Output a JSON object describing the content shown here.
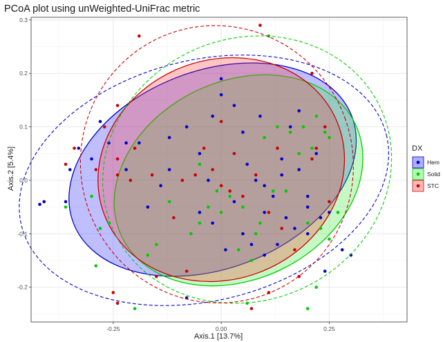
{
  "chart_data": {
    "type": "scatter",
    "title": "PCoA plot using unWeighted-UniFrac metric",
    "xlabel": "Axis.1   [13.7%]",
    "ylabel": "Axis.2   [5.4%]",
    "xlim": [
      -0.44,
      0.43
    ],
    "ylim": [
      -0.265,
      0.305
    ],
    "x_ticks": [
      -0.25,
      0.0,
      0.25
    ],
    "x_tick_labels": [
      "-0.25",
      "0.00",
      "0.25"
    ],
    "y_ticks": [
      -0.2,
      -0.1,
      0.0,
      0.1,
      0.2,
      0.3
    ],
    "y_tick_labels": [
      "-0.2",
      "-0.1",
      "0.0",
      "0.1",
      "0.2",
      "0.3"
    ],
    "grid": true,
    "legend": {
      "title": "DX",
      "placement": "right",
      "entries": [
        "Hem",
        "Solid",
        "STC"
      ]
    },
    "series": [
      {
        "name": "Hem",
        "color": "#0000cc",
        "fill": "#1a1aff",
        "points": [
          [
            -0.42,
            -0.045
          ],
          [
            -0.41,
            -0.04
          ],
          [
            -0.36,
            -0.04
          ],
          [
            -0.35,
            0.02
          ],
          [
            -0.33,
            0.06
          ],
          [
            -0.3,
            0.04
          ],
          [
            -0.28,
            0.11
          ],
          [
            -0.26,
            0.07
          ],
          [
            -0.22,
            0.02
          ],
          [
            -0.22,
            0.07
          ],
          [
            -0.19,
            0.07
          ],
          [
            -0.14,
            -0.01
          ],
          [
            -0.12,
            0.08
          ],
          [
            -0.08,
            0.1
          ],
          [
            -0.05,
            0.05
          ],
          [
            -0.02,
            0.12
          ],
          [
            0.0,
            0.16
          ],
          [
            0.03,
            0.14
          ],
          [
            0.05,
            0.09
          ],
          [
            0.06,
            0.03
          ],
          [
            0.08,
            0.0
          ],
          [
            0.1,
            -0.01
          ],
          [
            0.12,
            -0.03
          ],
          [
            0.14,
            0.04
          ],
          [
            0.16,
            0.1
          ],
          [
            0.18,
            0.02
          ],
          [
            0.2,
            -0.03
          ],
          [
            0.22,
            0.05
          ],
          [
            0.15,
            -0.07
          ],
          [
            0.13,
            -0.12
          ],
          [
            0.1,
            -0.06
          ],
          [
            0.05,
            -0.1
          ],
          [
            -0.02,
            -0.08
          ],
          [
            -0.05,
            -0.06
          ],
          [
            0.03,
            -0.04
          ],
          [
            0.07,
            -0.12
          ],
          [
            0.1,
            -0.14
          ],
          [
            0.2,
            -0.1
          ],
          [
            0.23,
            -0.07
          ],
          [
            0.25,
            -0.06
          ],
          [
            0.28,
            -0.13
          ],
          [
            0.3,
            -0.14
          ],
          [
            0.24,
            -0.17
          ],
          [
            0.2,
            -0.05
          ],
          [
            0.17,
            -0.09
          ],
          [
            0.0,
            0.19
          ],
          [
            -0.03,
            0.0
          ],
          [
            -0.17,
            -0.05
          ],
          [
            0.01,
            -0.13
          ],
          [
            -0.08,
            -0.22
          ],
          [
            0.14,
            0.01
          ],
          [
            0.09,
            0.12
          ],
          [
            0.18,
            0.13
          ],
          [
            -0.12,
            0.02
          ]
        ]
      },
      {
        "name": "Solid",
        "color": "#00cc00",
        "fill": "#33e633",
        "points": [
          [
            0.11,
            0.27
          ],
          [
            0.22,
            0.12
          ],
          [
            0.24,
            0.09
          ],
          [
            0.19,
            0.1
          ],
          [
            0.25,
            0.08
          ],
          [
            0.21,
            0.06
          ],
          [
            0.18,
            0.05
          ],
          [
            0.15,
            -0.02
          ],
          [
            0.2,
            -0.08
          ],
          [
            0.23,
            -0.09
          ],
          [
            0.25,
            -0.11
          ],
          [
            0.27,
            -0.06
          ],
          [
            0.09,
            -0.08
          ],
          [
            0.05,
            -0.05
          ],
          [
            0.02,
            -0.03
          ],
          [
            -0.01,
            -0.02
          ],
          [
            -0.03,
            -0.05
          ],
          [
            -0.05,
            -0.08
          ],
          [
            -0.07,
            -0.1
          ],
          [
            0.0,
            -0.06
          ],
          [
            0.04,
            -0.13
          ],
          [
            0.07,
            -0.15
          ],
          [
            0.06,
            -0.23
          ],
          [
            0.2,
            -0.24
          ],
          [
            -0.2,
            -0.24
          ],
          [
            -0.26,
            -0.08
          ],
          [
            -0.29,
            -0.16
          ],
          [
            -0.36,
            -0.05
          ],
          [
            -0.3,
            -0.03
          ],
          [
            -0.28,
            -0.09
          ],
          [
            -0.17,
            -0.14
          ],
          [
            -0.15,
            -0.12
          ],
          [
            0.1,
            0.08
          ],
          [
            0.13,
            0.1
          ],
          [
            0.16,
            0.09
          ],
          [
            0.08,
            -0.1
          ],
          [
            -0.12,
            -0.04
          ],
          [
            -0.05,
            0.03
          ],
          [
            0.12,
            -0.02
          ],
          [
            0.22,
            -0.2
          ]
        ]
      },
      {
        "name": "STC",
        "color": "#cc0000",
        "fill": "#ff3333",
        "points": [
          [
            0.09,
            0.29
          ],
          [
            -0.19,
            0.27
          ],
          [
            0.21,
            0.2
          ],
          [
            -0.24,
            0.14
          ],
          [
            -0.27,
            0.1
          ],
          [
            -0.34,
            0.06
          ],
          [
            -0.36,
            0.03
          ],
          [
            -0.29,
            0.02
          ],
          [
            -0.24,
            0.01
          ],
          [
            -0.21,
            0.0
          ],
          [
            -0.16,
            0.01
          ],
          [
            -0.09,
            0.0
          ],
          [
            -0.06,
            0.01
          ],
          [
            -0.02,
            0.02
          ],
          [
            0.0,
            -0.01
          ],
          [
            0.02,
            -0.02
          ],
          [
            0.05,
            -0.03
          ],
          [
            0.08,
            0.01
          ],
          [
            0.11,
            -0.06
          ],
          [
            0.14,
            -0.09
          ],
          [
            0.17,
            -0.13
          ],
          [
            0.21,
            0.04
          ],
          [
            0.22,
            0.06
          ],
          [
            0.24,
            0.1
          ],
          [
            0.25,
            -0.04
          ],
          [
            0.18,
            -0.18
          ],
          [
            -0.08,
            -0.17
          ],
          [
            -0.15,
            -0.18
          ],
          [
            -0.25,
            -0.21
          ],
          [
            -0.24,
            -0.23
          ],
          [
            0.11,
            -0.21
          ],
          [
            0.07,
            -0.24
          ],
          [
            0.03,
            0.05
          ],
          [
            -0.04,
            0.06
          ],
          [
            -0.11,
            -0.07
          ],
          [
            0.13,
            0.06
          ],
          [
            -0.2,
            0.06
          ],
          [
            0.0,
            0.11
          ],
          [
            -0.24,
            0.04
          ]
        ]
      }
    ],
    "ellipses": {
      "filled": [
        {
          "series": "Hem",
          "center": [
            -0.02,
            0.02
          ],
          "rx": 0.345,
          "ry": 0.185,
          "angle_deg": -21
        },
        {
          "series": "Solid",
          "center": [
            0.04,
            0.0
          ],
          "rx": 0.3,
          "ry": 0.185,
          "angle_deg": -26
        },
        {
          "series": "STC",
          "center": [
            0.0,
            0.02
          ],
          "rx": 0.29,
          "ry": 0.205,
          "angle_deg": -22
        }
      ],
      "dashed": [
        {
          "series": "Hem",
          "center": [
            -0.04,
            0.0
          ],
          "rx": 0.435,
          "ry": 0.225,
          "angle_deg": -14
        },
        {
          "series": "Solid",
          "center": [
            0.06,
            0.02
          ],
          "rx": 0.34,
          "ry": 0.245,
          "angle_deg": -24
        },
        {
          "series": "STC",
          "center": [
            -0.01,
            0.03
          ],
          "rx": 0.315,
          "ry": 0.26,
          "angle_deg": -20
        }
      ]
    }
  }
}
